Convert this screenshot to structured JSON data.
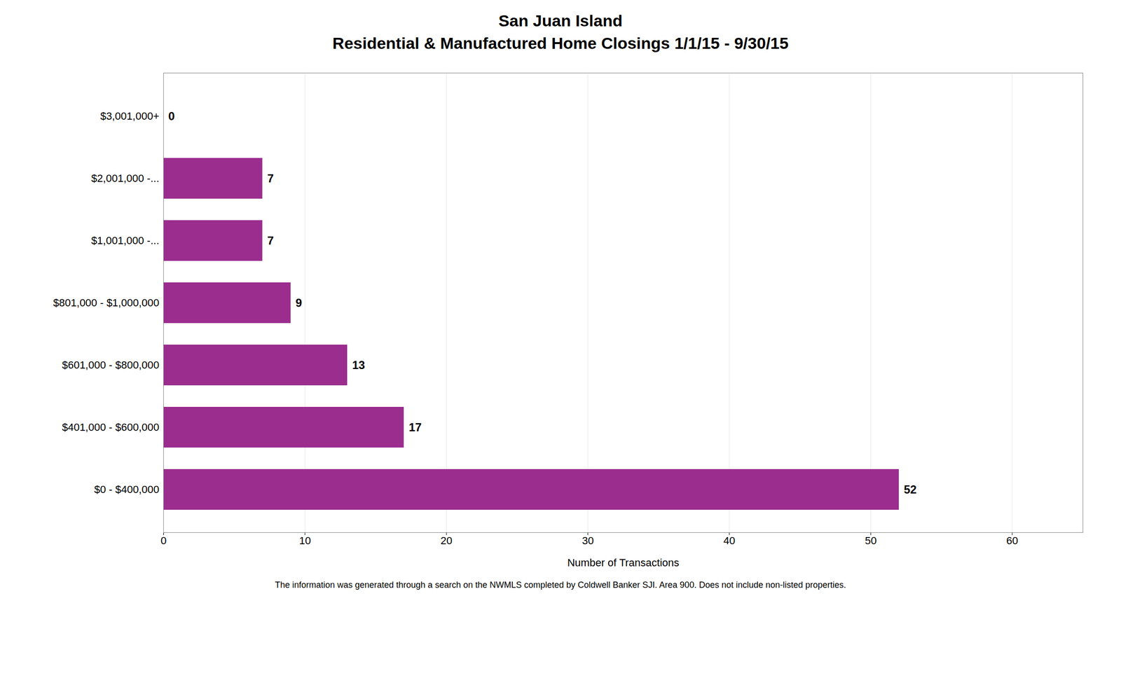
{
  "chart_data": {
    "type": "bar",
    "orientation": "horizontal",
    "title": "San Juan Island",
    "subtitle": "Residential & Manufactured Home Closings 1/1/15 - 9/30/15",
    "categories": [
      "$0 - $400,000",
      "$401,000 - $600,000",
      "$601,000 - $800,000",
      "$801,000 - $1,000,000",
      "$1,001,000 -...",
      "$2,001,000 -...",
      "$3,001,000+"
    ],
    "values": [
      52,
      17,
      13,
      9,
      7,
      7,
      0
    ],
    "color": "#9B2D8E",
    "xlabel": "Number of Transactions",
    "xlim": [
      0,
      65
    ],
    "xticks": [
      0,
      10,
      20,
      30,
      40,
      50,
      60
    ],
    "grid": true,
    "data_labels": true,
    "footnote": "The information was generated through a search on the NWMLS completed by Coldwell Banker SJI. Area 900. Does not include non-listed properties."
  }
}
